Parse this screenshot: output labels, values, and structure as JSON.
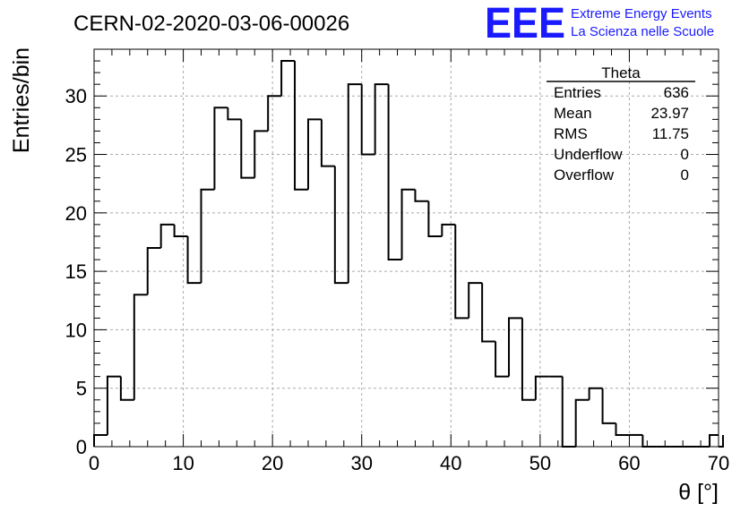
{
  "header": {
    "title": "CERN-02-2020-03-06-00026",
    "logo_text": "EEE",
    "logo_line1": "Extreme Energy Events",
    "logo_line2": "La Scienza nelle Scuole",
    "logo_color": "#1a1aff"
  },
  "stats": {
    "name": "Theta",
    "rows": [
      {
        "label": "Entries",
        "value": "636"
      },
      {
        "label": "Mean",
        "value": "23.97"
      },
      {
        "label": "RMS",
        "value": "11.75"
      },
      {
        "label": "Underflow",
        "value": "0"
      },
      {
        "label": "Overflow",
        "value": "0"
      }
    ]
  },
  "chart_data": {
    "type": "bar",
    "style": "step-histogram",
    "title": "CERN-02-2020-03-06-00026",
    "xlabel": "θ [°]",
    "ylabel": "Entries/bin",
    "xlim": [
      0,
      70
    ],
    "ylim": [
      0,
      34
    ],
    "bin_width": 1.5,
    "bin_edges_start": 0,
    "values": [
      1,
      6,
      4,
      13,
      17,
      19,
      18,
      14,
      22,
      29,
      28,
      23,
      27,
      30,
      33,
      22,
      28,
      24,
      14,
      31,
      25,
      31,
      16,
      22,
      21,
      18,
      19,
      11,
      14,
      9,
      6,
      11,
      4,
      6,
      6,
      0,
      4,
      5,
      2,
      1,
      1,
      0,
      0,
      0,
      0,
      0,
      1,
      0
    ],
    "x_ticks": [
      "0",
      "10",
      "20",
      "30",
      "40",
      "50",
      "60",
      "70"
    ],
    "y_ticks": [
      "0",
      "5",
      "10",
      "15",
      "20",
      "25",
      "30"
    ],
    "grid": true,
    "line_color": "#000000",
    "grid_color": "#aaaaaa"
  }
}
